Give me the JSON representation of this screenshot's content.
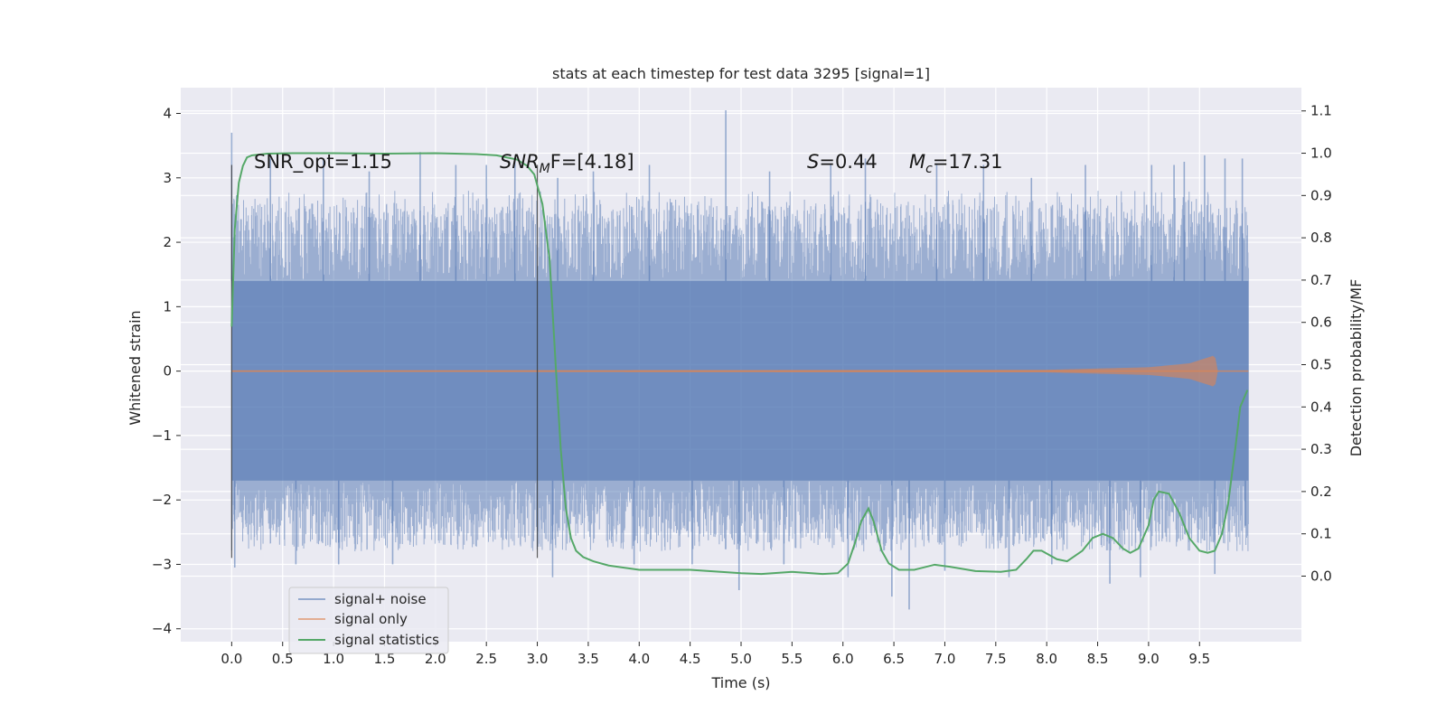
{
  "chart_data": {
    "type": "line",
    "title": "stats at each timestep for test data 3295 [signal=1]",
    "xlabel": "Time (s)",
    "ylabel_left": "Whitened strain",
    "ylabel_right": "Detection probability/MF",
    "xlim": [
      -0.5,
      10.5
    ],
    "ylim_left": [
      -4.2,
      4.4
    ],
    "ylim_right": [
      -0.155,
      1.155
    ],
    "x_ticks": [
      0.0,
      0.5,
      1.0,
      1.5,
      2.0,
      2.5,
      3.0,
      3.5,
      4.0,
      4.5,
      5.0,
      5.5,
      6.0,
      6.5,
      7.0,
      7.5,
      8.0,
      8.5,
      9.0,
      9.5
    ],
    "x_tick_labels": [
      "0.0",
      "0.5",
      "1.0",
      "1.5",
      "2.0",
      "2.5",
      "3.0",
      "3.5",
      "4.0",
      "4.5",
      "5.0",
      "5.5",
      "6.0",
      "6.5",
      "7.0",
      "7.5",
      "8.0",
      "8.5",
      "9.0",
      "9.5"
    ],
    "y_left_ticks": [
      -4,
      -3,
      -2,
      -1,
      0,
      1,
      2,
      3,
      4
    ],
    "y_left_tick_labels": [
      "−4",
      "−3",
      "−2",
      "−1",
      "0",
      "1",
      "2",
      "3",
      "4"
    ],
    "y_right_ticks": [
      0.0,
      0.1,
      0.2,
      0.3,
      0.4,
      0.5,
      0.6,
      0.7,
      0.8,
      0.9,
      1.0,
      1.1
    ],
    "y_right_tick_labels": [
      "0.0",
      "0.1",
      "0.2",
      "0.3",
      "0.4",
      "0.5",
      "0.6",
      "0.7",
      "0.8",
      "0.9",
      "1.0",
      "1.1"
    ],
    "grid": true,
    "legend_position": "lower-left",
    "annotations": {
      "snr_opt": "SNR_opt=1.15",
      "snr_mf_main": "SNR",
      "snr_mf_sub": "M",
      "snr_mf_rest": "F=[4.18]",
      "s_main": "S",
      "s_rest": "=0.44",
      "mc_main": "M",
      "mc_sub": "c",
      "mc_rest": "=17.31"
    },
    "window_markers_x": [
      0.0,
      3.0
    ],
    "window_markers_ylim": [
      -2.9,
      3.2
    ],
    "series": [
      {
        "name": "signal+ noise",
        "axis": "left",
        "color": "#4c72b0",
        "alpha": 0.5,
        "x_range": [
          0.0,
          9.98
        ],
        "core_band": [
          -1.7,
          1.4
        ],
        "peaks": [
          {
            "x": 0.0,
            "y": 3.7
          },
          {
            "x": 0.03,
            "y": -3.05
          },
          {
            "x": 0.38,
            "y": 3.3
          },
          {
            "x": 0.63,
            "y": -3.0
          },
          {
            "x": 0.9,
            "y": 3.3
          },
          {
            "x": 1.05,
            "y": -3.0
          },
          {
            "x": 1.35,
            "y": 3.1
          },
          {
            "x": 1.58,
            "y": -3.0
          },
          {
            "x": 1.85,
            "y": 3.4
          },
          {
            "x": 2.2,
            "y": 3.2
          },
          {
            "x": 2.5,
            "y": 3.2
          },
          {
            "x": 2.78,
            "y": 3.3
          },
          {
            "x": 3.15,
            "y": -3.2
          },
          {
            "x": 3.2,
            "y": 3.0
          },
          {
            "x": 3.55,
            "y": 3.1
          },
          {
            "x": 3.95,
            "y": -3.0
          },
          {
            "x": 4.1,
            "y": 3.2
          },
          {
            "x": 4.52,
            "y": -3.0
          },
          {
            "x": 4.85,
            "y": 4.05
          },
          {
            "x": 4.98,
            "y": -3.4
          },
          {
            "x": 5.28,
            "y": 3.1
          },
          {
            "x": 5.42,
            "y": -3.0
          },
          {
            "x": 5.88,
            "y": 3.2
          },
          {
            "x": 6.05,
            "y": -3.2
          },
          {
            "x": 6.22,
            "y": 3.3
          },
          {
            "x": 6.48,
            "y": -3.5
          },
          {
            "x": 6.65,
            "y": -3.7
          },
          {
            "x": 6.92,
            "y": 3.2
          },
          {
            "x": 7.0,
            "y": -3.1
          },
          {
            "x": 7.38,
            "y": 3.2
          },
          {
            "x": 7.63,
            "y": -3.2
          },
          {
            "x": 7.85,
            "y": 3.0
          },
          {
            "x": 8.05,
            "y": -3.0
          },
          {
            "x": 8.38,
            "y": 3.2
          },
          {
            "x": 8.62,
            "y": -3.3
          },
          {
            "x": 8.92,
            "y": -3.2
          },
          {
            "x": 9.03,
            "y": 3.2
          },
          {
            "x": 9.25,
            "y": 3.2
          },
          {
            "x": 9.35,
            "y": 3.25
          },
          {
            "x": 9.55,
            "y": 3.35
          },
          {
            "x": 9.65,
            "y": -3.15
          },
          {
            "x": 9.75,
            "y": 3.3
          },
          {
            "x": 9.92,
            "y": 3.3
          },
          {
            "x": 9.95,
            "y": -2.4
          }
        ]
      },
      {
        "name": "signal only",
        "axis": "left",
        "color": "#dd8452",
        "x_range": [
          0.0,
          9.98
        ],
        "envelope": [
          [
            0.0,
            0.01
          ],
          [
            8.0,
            0.02
          ],
          [
            9.0,
            0.06
          ],
          [
            9.4,
            0.12
          ],
          [
            9.6,
            0.22
          ],
          [
            9.65,
            0.25
          ],
          [
            9.68,
            0.0
          ],
          [
            9.98,
            0.0
          ]
        ]
      },
      {
        "name": "signal statistics",
        "axis": "right",
        "color": "#55a868",
        "x": [
          0.0,
          0.03,
          0.07,
          0.11,
          0.15,
          0.2,
          0.35,
          0.6,
          1.0,
          1.5,
          2.0,
          2.4,
          2.6,
          2.8,
          2.9,
          2.97,
          3.05,
          3.12,
          3.18,
          3.23,
          3.28,
          3.33,
          3.38,
          3.45,
          3.55,
          3.7,
          4.0,
          4.5,
          5.0,
          5.2,
          5.5,
          5.8,
          5.95,
          6.05,
          6.12,
          6.18,
          6.25,
          6.3,
          6.38,
          6.45,
          6.55,
          6.7,
          6.9,
          7.05,
          7.3,
          7.55,
          7.7,
          7.8,
          7.87,
          7.95,
          8.1,
          8.2,
          8.35,
          8.45,
          8.55,
          8.65,
          8.75,
          8.82,
          8.9,
          9.0,
          9.05,
          9.1,
          9.2,
          9.3,
          9.4,
          9.5,
          9.58,
          9.65,
          9.72,
          9.78,
          9.85,
          9.9,
          9.97
        ],
        "y": [
          0.59,
          0.82,
          0.93,
          0.97,
          0.99,
          0.995,
          0.999,
          1.0,
          1.0,
          0.999,
          1.0,
          0.998,
          0.995,
          0.985,
          0.97,
          0.95,
          0.88,
          0.75,
          0.5,
          0.3,
          0.16,
          0.09,
          0.06,
          0.045,
          0.035,
          0.025,
          0.015,
          0.015,
          0.007,
          0.005,
          0.01,
          0.005,
          0.007,
          0.03,
          0.08,
          0.13,
          0.16,
          0.13,
          0.06,
          0.03,
          0.015,
          0.015,
          0.027,
          0.022,
          0.012,
          0.01,
          0.015,
          0.04,
          0.06,
          0.06,
          0.04,
          0.035,
          0.06,
          0.09,
          0.1,
          0.09,
          0.065,
          0.055,
          0.065,
          0.12,
          0.18,
          0.2,
          0.195,
          0.15,
          0.09,
          0.06,
          0.055,
          0.06,
          0.1,
          0.17,
          0.3,
          0.4,
          0.44
        ]
      }
    ]
  }
}
